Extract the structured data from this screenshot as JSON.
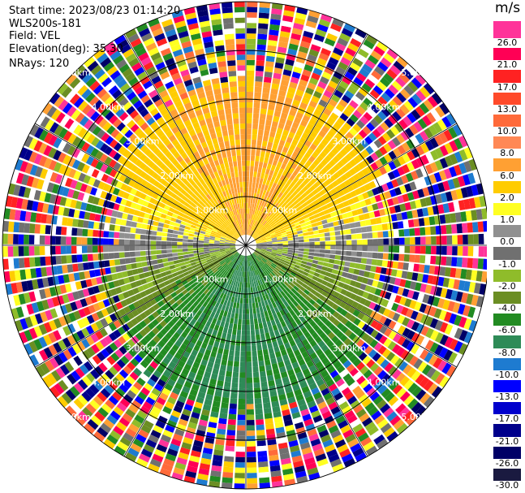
{
  "header": {
    "start_time": "Start time: 2023/08/23 01:14:20",
    "instrument": "WLS200s-181",
    "field": "Field: VEL",
    "elevation": "Elevation(deg): 35.30",
    "nrays": "NRays: 120"
  },
  "colorbar": {
    "unit": "m/s",
    "ticks": [
      "26.0",
      "21.0",
      "17.0",
      "13.0",
      "10.0",
      "8.0",
      "6.0",
      "2.0",
      "1.0",
      "0.0",
      "-1.0",
      "-2.0",
      "-4.0",
      "-6.0",
      "-8.0",
      "-10.0",
      "-13.0",
      "-17.0",
      "-21.0",
      "-26.0",
      "-30.0"
    ],
    "colors": [
      "#ff3399",
      "#ff0055",
      "#ff2222",
      "#ff4a2a",
      "#ff6a3a",
      "#ff8855",
      "#ffa033",
      "#ffcc00",
      "#ffff22",
      "#909090",
      "#707070",
      "#8fbc2a",
      "#6b8e23",
      "#228b22",
      "#2e8b57",
      "#1e7bd0",
      "#0000ff",
      "#0000cd",
      "#00008b",
      "#000066",
      "#1a1a40"
    ]
  },
  "chart_data": {
    "type": "ppi",
    "title": "",
    "field": "VEL",
    "unit": "m/s",
    "nrays": 120,
    "elevation_deg": 35.3,
    "range_rings_km": [
      1.0,
      2.0,
      3.0,
      4.0,
      5.0
    ],
    "ring_labels": [
      "1.00km",
      "2.00km",
      "3.00km",
      "4.00km",
      "5.00km"
    ],
    "max_range_km": 5.0,
    "color_levels": [
      -30.0,
      -26.0,
      -21.0,
      -17.0,
      -13.0,
      -10.0,
      -8.0,
      -6.0,
      -4.0,
      -2.0,
      -1.0,
      0.0,
      1.0,
      2.0,
      6.0,
      8.0,
      10.0,
      13.0,
      17.0,
      21.0,
      26.0
    ],
    "valid_range_km": [
      0.0,
      3.2
    ],
    "velocity_pattern": {
      "north_sector": "positive (2 to 8 m/s)",
      "south_sector": "negative (-2 to -8 m/s)",
      "east_west": "near zero (-1 to 1 m/s)",
      "beyond_valid_range": "noise (all levels)"
    }
  }
}
